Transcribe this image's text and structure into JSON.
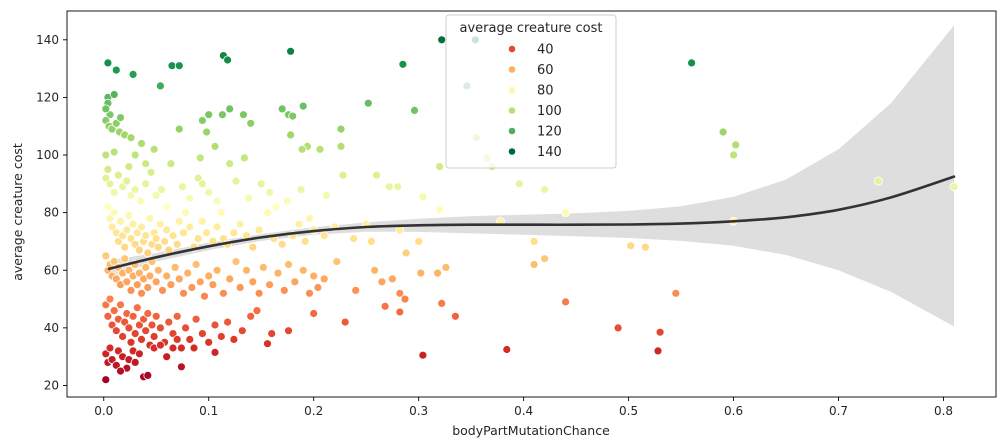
{
  "chart_data": {
    "type": "scatter",
    "xlabel": "bodyPartMutationChance",
    "ylabel": "average creature cost",
    "xlim": [
      -0.035,
      0.85
    ],
    "ylim": [
      16,
      150
    ],
    "xticks": [
      0.0,
      0.1,
      0.2,
      0.3,
      0.4,
      0.5,
      0.6,
      0.7,
      0.8
    ],
    "yticks": [
      20,
      40,
      60,
      80,
      100,
      120,
      140
    ],
    "grid": false,
    "legend": {
      "title": "average creature cost",
      "placement": "top-center",
      "entries": [
        {
          "label": "40",
          "color": "#e34a33"
        },
        {
          "label": "60",
          "color": "#fdae61"
        },
        {
          "label": "80",
          "color": "#fff6b0"
        },
        {
          "label": "100",
          "color": "#b7e075"
        },
        {
          "label": "120",
          "color": "#4eb05e"
        },
        {
          "label": "140",
          "color": "#006837"
        }
      ]
    },
    "hue_scale": {
      "min": 22,
      "max": 142,
      "colormap": "RdYlGn"
    },
    "points": [
      [
        0.004,
        132
      ],
      [
        0.012,
        129.5
      ],
      [
        0.028,
        128
      ],
      [
        0.065,
        131
      ],
      [
        0.072,
        131
      ],
      [
        0.114,
        134.5
      ],
      [
        0.118,
        133
      ],
      [
        0.178,
        136
      ],
      [
        0.285,
        131.5
      ],
      [
        0.322,
        140
      ],
      [
        0.354,
        140
      ],
      [
        0.56,
        132
      ],
      [
        0.004,
        120
      ],
      [
        0.01,
        121
      ],
      [
        0.004,
        118
      ],
      [
        0.006,
        114
      ],
      [
        0.002,
        112
      ],
      [
        0.005,
        110
      ],
      [
        0.008,
        109
      ],
      [
        0.012,
        111
      ],
      [
        0.015,
        108
      ],
      [
        0.02,
        107
      ],
      [
        0.026,
        106
      ],
      [
        0.016,
        113
      ],
      [
        0.002,
        116
      ],
      [
        0.054,
        124
      ],
      [
        0.072,
        109
      ],
      [
        0.094,
        112
      ],
      [
        0.1,
        114
      ],
      [
        0.098,
        108
      ],
      [
        0.113,
        114
      ],
      [
        0.12,
        116
      ],
      [
        0.133,
        114
      ],
      [
        0.14,
        111
      ],
      [
        0.17,
        116
      ],
      [
        0.176,
        114
      ],
      [
        0.18,
        113.5
      ],
      [
        0.19,
        117
      ],
      [
        0.252,
        118
      ],
      [
        0.296,
        115.5
      ],
      [
        0.226,
        109
      ],
      [
        0.178,
        107
      ],
      [
        0.194,
        103
      ],
      [
        0.189,
        102
      ],
      [
        0.206,
        102
      ],
      [
        0.106,
        103
      ],
      [
        0.12,
        97
      ],
      [
        0.134,
        99
      ],
      [
        0.092,
        99
      ],
      [
        0.036,
        104
      ],
      [
        0.048,
        102
      ],
      [
        0.03,
        100
      ],
      [
        0.04,
        97
      ],
      [
        0.024,
        96
      ],
      [
        0.01,
        101
      ],
      [
        0.002,
        100
      ],
      [
        0.226,
        103
      ],
      [
        0.346,
        124
      ],
      [
        0.355,
        106
      ],
      [
        0.59,
        108
      ],
      [
        0.6,
        100
      ],
      [
        0.602,
        103.5
      ],
      [
        0.002,
        92
      ],
      [
        0.004,
        95
      ],
      [
        0.006,
        90
      ],
      [
        0.01,
        87
      ],
      [
        0.014,
        93
      ],
      [
        0.018,
        89
      ],
      [
        0.022,
        91
      ],
      [
        0.026,
        86
      ],
      [
        0.03,
        88
      ],
      [
        0.035,
        84
      ],
      [
        0.04,
        90
      ],
      [
        0.045,
        94
      ],
      [
        0.05,
        86
      ],
      [
        0.055,
        88
      ],
      [
        0.06,
        82
      ],
      [
        0.064,
        97
      ],
      [
        0.075,
        89
      ],
      [
        0.082,
        85
      ],
      [
        0.09,
        92
      ],
      [
        0.094,
        90
      ],
      [
        0.1,
        87
      ],
      [
        0.108,
        84
      ],
      [
        0.112,
        80
      ],
      [
        0.126,
        91
      ],
      [
        0.138,
        85
      ],
      [
        0.15,
        90
      ],
      [
        0.158,
        87
      ],
      [
        0.164,
        82
      ],
      [
        0.175,
        84
      ],
      [
        0.188,
        88
      ],
      [
        0.196,
        78
      ],
      [
        0.212,
        86
      ],
      [
        0.228,
        93
      ],
      [
        0.26,
        93
      ],
      [
        0.272,
        89
      ],
      [
        0.28,
        89
      ],
      [
        0.304,
        85.5
      ],
      [
        0.32,
        81
      ],
      [
        0.365,
        99
      ],
      [
        0.37,
        96
      ],
      [
        0.378,
        77
      ],
      [
        0.396,
        90
      ],
      [
        0.42,
        88
      ],
      [
        0.44,
        80
      ],
      [
        0.6,
        77
      ],
      [
        0.738,
        91
      ],
      [
        0.81,
        89
      ],
      [
        0.32,
        96
      ],
      [
        0.25,
        76
      ],
      [
        0.004,
        82
      ],
      [
        0.006,
        78
      ],
      [
        0.008,
        75
      ],
      [
        0.01,
        80
      ],
      [
        0.012,
        73
      ],
      [
        0.014,
        70
      ],
      [
        0.016,
        77
      ],
      [
        0.018,
        72
      ],
      [
        0.02,
        68
      ],
      [
        0.022,
        74
      ],
      [
        0.024,
        79
      ],
      [
        0.026,
        71
      ],
      [
        0.028,
        76
      ],
      [
        0.03,
        69
      ],
      [
        0.032,
        73
      ],
      [
        0.034,
        67
      ],
      [
        0.036,
        75
      ],
      [
        0.038,
        70
      ],
      [
        0.04,
        72
      ],
      [
        0.042,
        66
      ],
      [
        0.044,
        78
      ],
      [
        0.046,
        69
      ],
      [
        0.048,
        73
      ],
      [
        0.05,
        71
      ],
      [
        0.052,
        68
      ],
      [
        0.054,
        76
      ],
      [
        0.058,
        70
      ],
      [
        0.06,
        74
      ],
      [
        0.062,
        67
      ],
      [
        0.066,
        72
      ],
      [
        0.07,
        69
      ],
      [
        0.072,
        77
      ],
      [
        0.076,
        73
      ],
      [
        0.078,
        80
      ],
      [
        0.082,
        75
      ],
      [
        0.086,
        68
      ],
      [
        0.09,
        71
      ],
      [
        0.094,
        77
      ],
      [
        0.098,
        73
      ],
      [
        0.104,
        70
      ],
      [
        0.108,
        75
      ],
      [
        0.114,
        71
      ],
      [
        0.118,
        69
      ],
      [
        0.124,
        73
      ],
      [
        0.13,
        76
      ],
      [
        0.136,
        72
      ],
      [
        0.142,
        68
      ],
      [
        0.148,
        74
      ],
      [
        0.156,
        80
      ],
      [
        0.162,
        71
      ],
      [
        0.17,
        69
      ],
      [
        0.18,
        72
      ],
      [
        0.186,
        76
      ],
      [
        0.192,
        70
      ],
      [
        0.2,
        74
      ],
      [
        0.21,
        72
      ],
      [
        0.22,
        75
      ],
      [
        0.238,
        71
      ],
      [
        0.255,
        70
      ],
      [
        0.282,
        74
      ],
      [
        0.3,
        70
      ],
      [
        0.41,
        70
      ],
      [
        0.41,
        62
      ],
      [
        0.002,
        65
      ],
      [
        0.004,
        60
      ],
      [
        0.006,
        62
      ],
      [
        0.008,
        58
      ],
      [
        0.01,
        63
      ],
      [
        0.012,
        57
      ],
      [
        0.014,
        61
      ],
      [
        0.016,
        55
      ],
      [
        0.018,
        59
      ],
      [
        0.02,
        64
      ],
      [
        0.022,
        56
      ],
      [
        0.024,
        60
      ],
      [
        0.026,
        53
      ],
      [
        0.028,
        58
      ],
      [
        0.03,
        62
      ],
      [
        0.032,
        55
      ],
      [
        0.034,
        59
      ],
      [
        0.036,
        52
      ],
      [
        0.038,
        57
      ],
      [
        0.04,
        61
      ],
      [
        0.042,
        54
      ],
      [
        0.044,
        58
      ],
      [
        0.046,
        63
      ],
      [
        0.05,
        56
      ],
      [
        0.052,
        60
      ],
      [
        0.056,
        53
      ],
      [
        0.06,
        58
      ],
      [
        0.064,
        55
      ],
      [
        0.068,
        61
      ],
      [
        0.072,
        57
      ],
      [
        0.076,
        52
      ],
      [
        0.08,
        59
      ],
      [
        0.084,
        54
      ],
      [
        0.088,
        62
      ],
      [
        0.092,
        56
      ],
      [
        0.096,
        51
      ],
      [
        0.1,
        58
      ],
      [
        0.104,
        55
      ],
      [
        0.108,
        60
      ],
      [
        0.114,
        52
      ],
      [
        0.12,
        57
      ],
      [
        0.126,
        63
      ],
      [
        0.13,
        54
      ],
      [
        0.136,
        60
      ],
      [
        0.142,
        56
      ],
      [
        0.148,
        52
      ],
      [
        0.152,
        61
      ],
      [
        0.158,
        55
      ],
      [
        0.166,
        59
      ],
      [
        0.172,
        53
      ],
      [
        0.176,
        62
      ],
      [
        0.182,
        56
      ],
      [
        0.19,
        60
      ],
      [
        0.196,
        52
      ],
      [
        0.2,
        58
      ],
      [
        0.204,
        54
      ],
      [
        0.21,
        57
      ],
      [
        0.222,
        63
      ],
      [
        0.24,
        53
      ],
      [
        0.258,
        60
      ],
      [
        0.268,
        47.5
      ],
      [
        0.275,
        57
      ],
      [
        0.282,
        52
      ],
      [
        0.288,
        66
      ],
      [
        0.302,
        59
      ],
      [
        0.318,
        59
      ],
      [
        0.322,
        48.5
      ],
      [
        0.326,
        61
      ],
      [
        0.335,
        44
      ],
      [
        0.42,
        64
      ],
      [
        0.44,
        49
      ],
      [
        0.502,
        68.5
      ],
      [
        0.516,
        68
      ],
      [
        0.545,
        52
      ],
      [
        0.265,
        56
      ],
      [
        0.002,
        48
      ],
      [
        0.004,
        44
      ],
      [
        0.006,
        50
      ],
      [
        0.008,
        41
      ],
      [
        0.01,
        46
      ],
      [
        0.012,
        39
      ],
      [
        0.014,
        43
      ],
      [
        0.016,
        48
      ],
      [
        0.018,
        37
      ],
      [
        0.02,
        42
      ],
      [
        0.022,
        45
      ],
      [
        0.024,
        40
      ],
      [
        0.026,
        35
      ],
      [
        0.028,
        44
      ],
      [
        0.03,
        38
      ],
      [
        0.032,
        47
      ],
      [
        0.034,
        41
      ],
      [
        0.036,
        36
      ],
      [
        0.038,
        43
      ],
      [
        0.04,
        39
      ],
      [
        0.042,
        45
      ],
      [
        0.044,
        34
      ],
      [
        0.046,
        41
      ],
      [
        0.048,
        37
      ],
      [
        0.05,
        44
      ],
      [
        0.054,
        40
      ],
      [
        0.058,
        35
      ],
      [
        0.062,
        42
      ],
      [
        0.066,
        38
      ],
      [
        0.07,
        44
      ],
      [
        0.074,
        33
      ],
      [
        0.078,
        40
      ],
      [
        0.082,
        36
      ],
      [
        0.088,
        43
      ],
      [
        0.094,
        38
      ],
      [
        0.1,
        35
      ],
      [
        0.106,
        41
      ],
      [
        0.112,
        37
      ],
      [
        0.118,
        42
      ],
      [
        0.124,
        36
      ],
      [
        0.132,
        39
      ],
      [
        0.14,
        44
      ],
      [
        0.146,
        46
      ],
      [
        0.16,
        38
      ],
      [
        0.176,
        39
      ],
      [
        0.2,
        45
      ],
      [
        0.23,
        42
      ],
      [
        0.282,
        45.5
      ],
      [
        0.287,
        50
      ],
      [
        0.49,
        40
      ],
      [
        0.53,
        38.5
      ],
      [
        0.002,
        31
      ],
      [
        0.004,
        28
      ],
      [
        0.006,
        33
      ],
      [
        0.008,
        29
      ],
      [
        0.012,
        27
      ],
      [
        0.014,
        32
      ],
      [
        0.018,
        30
      ],
      [
        0.022,
        26
      ],
      [
        0.024,
        29
      ],
      [
        0.028,
        32
      ],
      [
        0.03,
        28
      ],
      [
        0.034,
        31
      ],
      [
        0.038,
        23
      ],
      [
        0.042,
        23.5
      ],
      [
        0.048,
        33
      ],
      [
        0.054,
        34
      ],
      [
        0.06,
        30
      ],
      [
        0.066,
        33
      ],
      [
        0.07,
        36
      ],
      [
        0.074,
        26.5
      ],
      [
        0.086,
        33
      ],
      [
        0.1,
        35
      ],
      [
        0.106,
        31.5
      ],
      [
        0.156,
        34.5
      ],
      [
        0.304,
        30.5
      ],
      [
        0.384,
        32.5
      ],
      [
        0.528,
        32
      ],
      [
        0.002,
        22
      ],
      [
        0.016,
        25
      ]
    ],
    "regression": {
      "type": "polynomial",
      "x": [
        0.005,
        0.05,
        0.1,
        0.15,
        0.2,
        0.25,
        0.3,
        0.35,
        0.4,
        0.45,
        0.5,
        0.55,
        0.6,
        0.65,
        0.7,
        0.75,
        0.81
      ],
      "y": [
        60.5,
        64.5,
        68.3,
        71.4,
        73.6,
        75.0,
        75.6,
        75.8,
        75.8,
        75.8,
        75.9,
        76.2,
        77.0,
        78.4,
        81.0,
        85.3,
        92.5
      ],
      "ci_low": [
        57.5,
        63.0,
        67.0,
        70.2,
        72.3,
        73.4,
        73.3,
        72.8,
        72.3,
        71.8,
        71.2,
        70.2,
        68.5,
        65.3,
        60.0,
        52.5,
        40.5
      ],
      "ci_high": [
        63.5,
        66.0,
        69.6,
        72.6,
        74.9,
        76.6,
        77.9,
        78.8,
        79.3,
        79.8,
        80.6,
        82.2,
        85.5,
        91.5,
        102.0,
        118.0,
        145.0
      ],
      "color": "#333333",
      "band_color": "#dedede"
    }
  }
}
